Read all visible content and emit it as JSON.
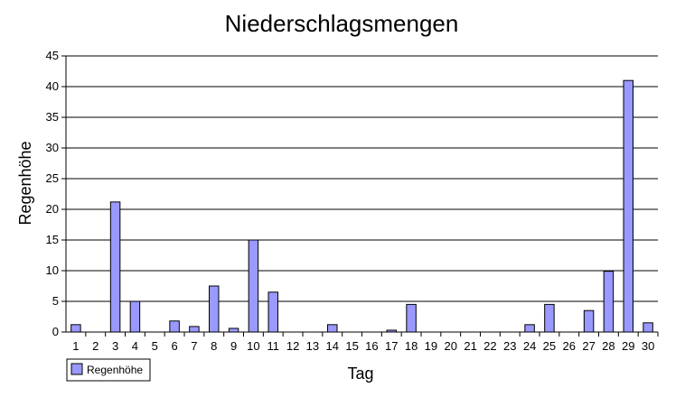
{
  "chart_data": {
    "type": "bar",
    "title": "Niederschlagsmengen",
    "xlabel": "Tag",
    "ylabel": "Regenhöhe",
    "ylim": [
      0,
      45
    ],
    "yticks": [
      "0",
      "5",
      "10",
      "15",
      "20",
      "25",
      "30",
      "35",
      "40",
      "45"
    ],
    "grid": true,
    "legend_position": "bottom-left",
    "categories": [
      "1",
      "2",
      "3",
      "4",
      "5",
      "6",
      "7",
      "8",
      "9",
      "10",
      "11",
      "12",
      "13",
      "14",
      "15",
      "16",
      "17",
      "18",
      "19",
      "20",
      "21",
      "22",
      "23",
      "24",
      "25",
      "26",
      "27",
      "28",
      "29",
      "30"
    ],
    "series": [
      {
        "name": "Regenhöhe",
        "color": "#9999ff",
        "values": [
          1.2,
          0,
          21.2,
          5,
          0,
          1.8,
          0.9,
          7.5,
          0.6,
          15,
          6.5,
          0,
          0,
          1.2,
          0,
          0,
          0.3,
          4.5,
          0,
          0,
          0,
          0,
          0,
          1.2,
          4.5,
          0,
          3.5,
          9.9,
          41,
          1.5
        ]
      }
    ]
  }
}
